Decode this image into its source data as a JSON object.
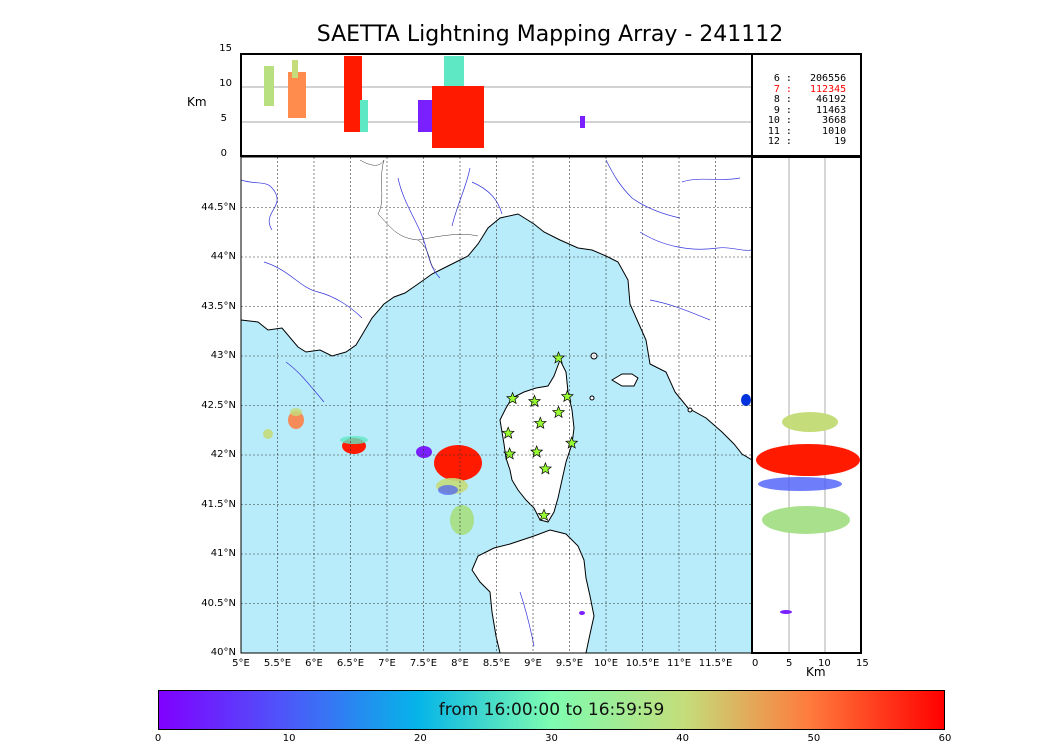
{
  "title": "SAETTA Lightning Mapping Array - 241112",
  "height_axis": {
    "unit": "Km",
    "ticks": [
      "15",
      "10",
      "5",
      "0"
    ]
  },
  "lat_ticks": [
    "44.5°N",
    "44°N",
    "43.5°N",
    "43°N",
    "42.5°N",
    "42°N",
    "41.5°N",
    "41°N",
    "40.5°N",
    "40°N"
  ],
  "lon_ticks": [
    "5°E",
    "5.5°E",
    "6°E",
    "6.5°E",
    "7°E",
    "7.5°E",
    "8°E",
    "8.5°E",
    "9°E",
    "9.5°E",
    "10°E",
    "10.5°E",
    "11°E",
    "11.5°E"
  ],
  "side_axis": {
    "unit": "Km",
    "ticks": [
      "0",
      "5",
      "10",
      "15"
    ]
  },
  "station_stats": [
    {
      "station": "6",
      "count": "206556",
      "highlight": false
    },
    {
      "station": "7",
      "count": "112345",
      "highlight": true
    },
    {
      "station": "8",
      "count": "46192",
      "highlight": false
    },
    {
      "station": "9",
      "count": "11463",
      "highlight": false
    },
    {
      "station": "10",
      "count": "3668",
      "highlight": false
    },
    {
      "station": "11",
      "count": "1010",
      "highlight": false
    },
    {
      "station": "12",
      "count": "19",
      "highlight": false
    }
  ],
  "colorbar": {
    "label": "from 16:00:00 to 16:59:59",
    "ticks": [
      "0",
      "10",
      "20",
      "30",
      "40",
      "50",
      "60"
    ],
    "colormap": "rainbow"
  },
  "colors": {
    "sea": "#b8ecfb",
    "rivers": "#3333dd",
    "station_marker": "#99ff33",
    "highlight_text": "#ff0000"
  },
  "stations": [
    {
      "lon": 9.35,
      "lat": 42.98
    },
    {
      "lon": 8.72,
      "lat": 42.57
    },
    {
      "lon": 9.02,
      "lat": 42.54
    },
    {
      "lon": 9.47,
      "lat": 42.59
    },
    {
      "lon": 9.35,
      "lat": 42.43
    },
    {
      "lon": 9.1,
      "lat": 42.32
    },
    {
      "lon": 8.66,
      "lat": 42.22
    },
    {
      "lon": 9.53,
      "lat": 42.12
    },
    {
      "lon": 8.68,
      "lat": 42.01
    },
    {
      "lon": 9.05,
      "lat": 42.03
    },
    {
      "lon": 9.17,
      "lat": 41.86
    },
    {
      "lon": 9.15,
      "lat": 41.39
    }
  ]
}
